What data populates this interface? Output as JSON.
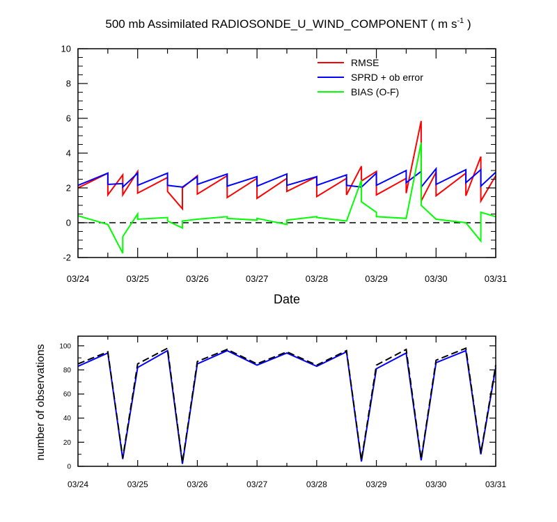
{
  "title_main": "500 mb Assimilated RADIOSONDE_U_WIND_COMPONENT ( m s",
  "title_exp": "-1",
  "title_end": " )",
  "chart_data": [
    {
      "type": "line",
      "xlabel": "Date",
      "ylabel": "",
      "xlim": [
        0,
        7
      ],
      "ylim": [
        -2,
        10
      ],
      "xticks": [
        0,
        1,
        2,
        3,
        4,
        5,
        6,
        7
      ],
      "xtick_labels": [
        "03/24",
        "03/25",
        "03/26",
        "03/27",
        "03/28",
        "03/29",
        "03/30",
        "03/31"
      ],
      "yticks": [
        -2,
        0,
        2,
        4,
        6,
        8,
        10
      ],
      "ytick_labels": [
        "-2",
        "0",
        "2",
        "4",
        "6",
        "8",
        "10"
      ],
      "reference_line": {
        "y": 0,
        "style": "dashed"
      },
      "legend_position": "top-right",
      "series": [
        {
          "name": "RMSE",
          "color": "#ff0000",
          "x": [
            0,
            0.5,
            0.5,
            0.75,
            0.75,
            1,
            1,
            1.5,
            1.5,
            1.75,
            1.75,
            2,
            2,
            2.5,
            2.5,
            3,
            3,
            3.5,
            3.5,
            4,
            4,
            4.5,
            4.5,
            4.75,
            4.75,
            5,
            5,
            5.5,
            5.5,
            5.75,
            5.75,
            6,
            6,
            6.5,
            6.5,
            6.75,
            6.75,
            7
          ],
          "y": [
            2.0,
            2.85,
            1.6,
            2.75,
            1.6,
            2.95,
            1.7,
            2.6,
            1.8,
            0.8,
            2.0,
            2.7,
            1.65,
            2.7,
            1.45,
            2.55,
            1.4,
            2.55,
            1.8,
            2.65,
            1.5,
            2.55,
            1.6,
            3.25,
            2.4,
            2.95,
            1.6,
            2.55,
            1.7,
            5.85,
            1.25,
            2.9,
            1.55,
            2.85,
            1.55,
            3.8,
            1.25,
            2.7
          ]
        },
        {
          "name": "SPRD + ob error",
          "color": "#0000ff",
          "x": [
            0,
            0.5,
            0.5,
            0.75,
            0.75,
            1,
            1,
            1.5,
            1.5,
            1.75,
            1.75,
            2,
            2,
            2.5,
            2.5,
            3,
            3,
            3.5,
            3.5,
            4,
            4,
            4.5,
            4.5,
            4.75,
            4.75,
            5,
            5,
            5.5,
            5.5,
            5.75,
            5.75,
            6,
            6,
            6.5,
            6.5,
            6.75,
            6.75,
            7
          ],
          "y": [
            2.15,
            2.85,
            2.2,
            2.25,
            2.05,
            2.85,
            2.15,
            2.85,
            2.15,
            2.05,
            2.05,
            2.65,
            2.2,
            2.8,
            2.1,
            2.65,
            2.1,
            2.8,
            2.15,
            2.65,
            2.15,
            2.75,
            2.15,
            2.05,
            2.05,
            2.85,
            2.15,
            3.0,
            2.3,
            2.95,
            2.05,
            3.1,
            2.2,
            3.05,
            2.3,
            3.05,
            2.1,
            2.9
          ]
        },
        {
          "name": "BIAS (O-F)",
          "color": "#00ff00",
          "x": [
            0,
            0.5,
            0.5,
            0.75,
            0.75,
            1,
            1,
            1.5,
            1.5,
            1.75,
            1.75,
            2,
            2,
            2.5,
            2.5,
            3,
            3,
            3.5,
            3.5,
            4,
            4,
            4.5,
            4.5,
            4.75,
            4.75,
            5,
            5,
            5.5,
            5.5,
            5.75,
            5.75,
            6,
            6,
            6.5,
            6.5,
            6.75,
            6.75,
            7
          ],
          "y": [
            0.4,
            -0.1,
            -0.1,
            -1.75,
            -0.8,
            0.5,
            0.2,
            0.3,
            0.1,
            -0.3,
            0.1,
            0.2,
            0.2,
            0.35,
            0.25,
            0.15,
            0.25,
            -0.1,
            0.15,
            0.35,
            0.3,
            0.1,
            0.1,
            2.45,
            1.2,
            0.6,
            0.35,
            0.25,
            0.25,
            4.6,
            1.0,
            0.2,
            0.2,
            0.0,
            0.0,
            -1.05,
            0.6,
            0.35
          ]
        }
      ]
    },
    {
      "type": "line",
      "xlabel": "",
      "ylabel": "number of observations",
      "xlim": [
        0,
        7
      ],
      "ylim": [
        0,
        108
      ],
      "xticks": [
        0,
        1,
        2,
        3,
        4,
        5,
        6,
        7
      ],
      "xtick_labels": [
        "03/24",
        "03/25",
        "03/26",
        "03/27",
        "03/28",
        "03/29",
        "03/30",
        "03/31"
      ],
      "yticks": [
        0,
        20,
        40,
        60,
        80,
        100
      ],
      "ytick_labels": [
        "0",
        "20",
        "40",
        "60",
        "80",
        "100"
      ],
      "series": [
        {
          "color": "#0000ff",
          "style": "solid",
          "x": [
            0,
            0.5,
            0.75,
            1,
            1.5,
            1.75,
            2,
            2.5,
            3,
            3.5,
            4,
            4.5,
            4.75,
            5,
            5.5,
            5.75,
            6,
            6.5,
            6.75,
            7
          ],
          "y": [
            83,
            94,
            6,
            82,
            96,
            2,
            85,
            96,
            84,
            94,
            83,
            95,
            4,
            81,
            94,
            5,
            86,
            96,
            10,
            82
          ]
        },
        {
          "color": "#000000",
          "style": "dashed",
          "x": [
            0,
            0.5,
            0.75,
            1,
            1.5,
            1.75,
            2,
            2.5,
            3,
            3.5,
            4,
            4.5,
            4.75,
            5,
            5.5,
            5.75,
            6,
            6.5,
            6.75,
            7
          ],
          "y": [
            85,
            95,
            7,
            85,
            98,
            3,
            87,
            97,
            85,
            95,
            84,
            96,
            5,
            84,
            97,
            6,
            88,
            98,
            11,
            84
          ]
        }
      ]
    }
  ]
}
